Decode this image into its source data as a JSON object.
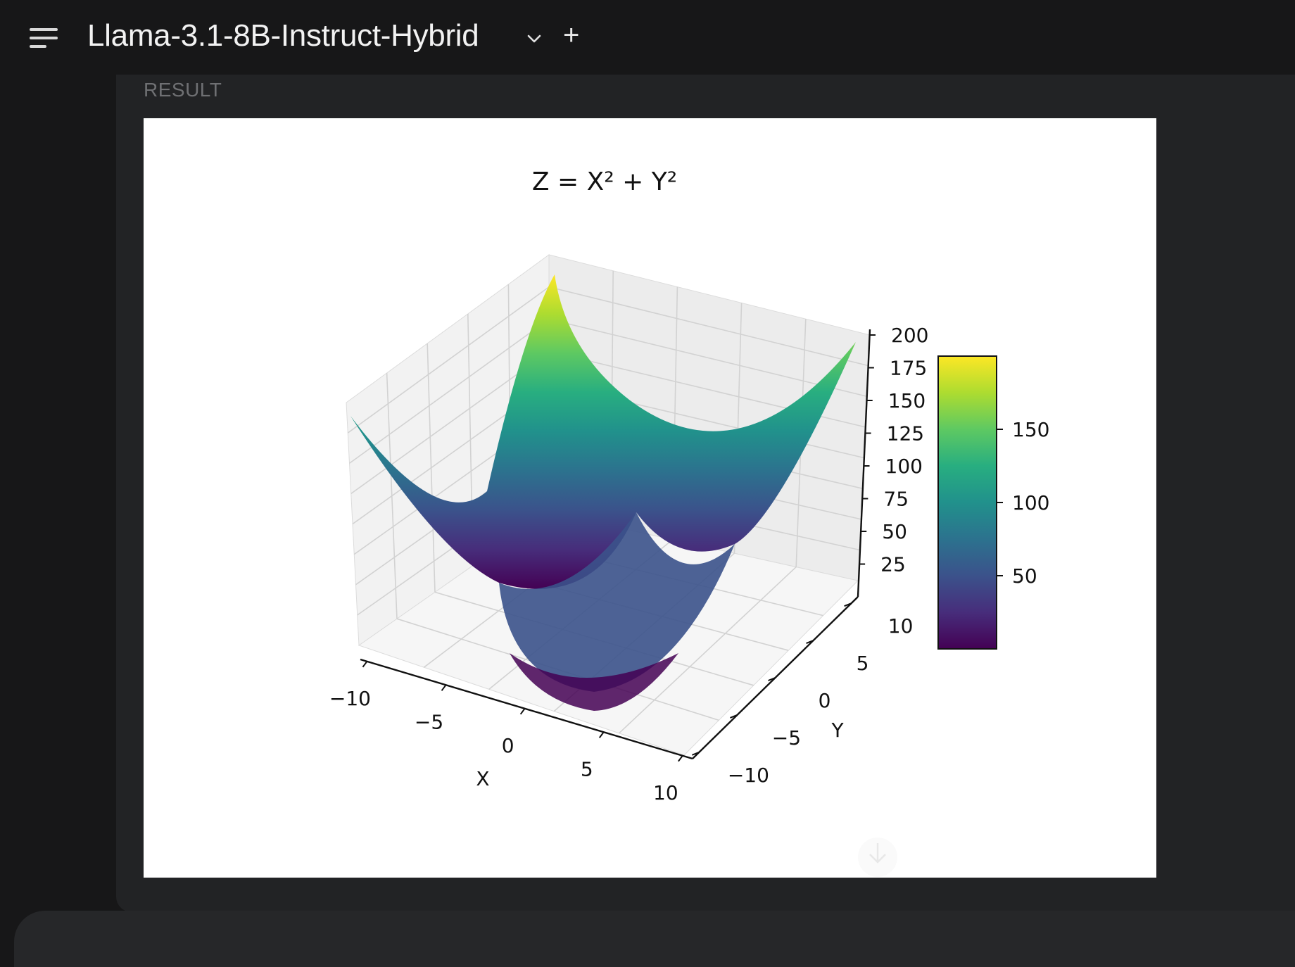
{
  "header": {
    "model_name": "Llama-3.1-8B-Instruct-Hybrid",
    "new_label": "+",
    "icons": {
      "menu": "menu-icon",
      "dropdown": "chevron-down-icon",
      "scroll": "arrow-down-icon"
    }
  },
  "result": {
    "label": "RESULT"
  },
  "chart_data": {
    "type": "surface3d",
    "title": "Z = X² + Y²",
    "xlabel": "X",
    "ylabel": "Y",
    "zlabel": "",
    "x_ticks": [
      "−10",
      "−5",
      "0",
      "5",
      "10"
    ],
    "y_ticks": [
      "−10",
      "−5",
      "0",
      "5",
      "10"
    ],
    "z_ticks": [
      "25",
      "50",
      "75",
      "100",
      "125",
      "150",
      "175",
      "200"
    ],
    "xlim": [
      -10,
      10
    ],
    "ylim": [
      -10,
      10
    ],
    "zlim": [
      0,
      200
    ],
    "colormap": "viridis",
    "colorbar_ticks": [
      "50",
      "100",
      "150"
    ],
    "colorbar_range": [
      0,
      200
    ],
    "grid": true
  }
}
